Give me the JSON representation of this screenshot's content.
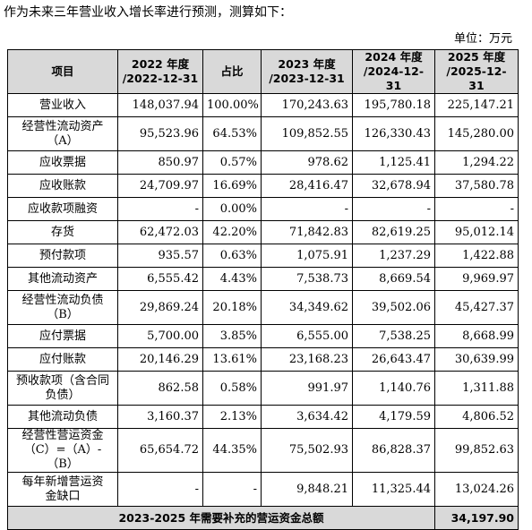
{
  "intro_text": "作为未来三年营业收入增长率进行预测，测算如下：",
  "unit_text": "单位：万元",
  "headers": {
    "item": "项目",
    "y2022_l1": "2022 年度",
    "y2022_l2": "/2022-12-31",
    "ratio": "占比",
    "y2023_l1": "2023 年度",
    "y2023_l2": "/2023-12-31",
    "y2024_l1": "2024 年度",
    "y2024_l2": "/2024-12-31",
    "y2025_l1": "2025 年度",
    "y2025_l2": "/2025-12-31"
  },
  "rows": [
    {
      "label1": "营业收入",
      "label2": "",
      "v2022": "148,037.94",
      "ratio": "100.00%",
      "v2023": "170,243.63",
      "v2024": "195,780.18",
      "v2025": "225,147.21"
    },
    {
      "label1": "经营性流动资产",
      "label2": "（A）",
      "v2022": "95,523.96",
      "ratio": "64.53%",
      "v2023": "109,852.55",
      "v2024": "126,330.43",
      "v2025": "145,280.00"
    },
    {
      "label1": "应收票据",
      "label2": "",
      "v2022": "850.97",
      "ratio": "0.57%",
      "v2023": "978.62",
      "v2024": "1,125.41",
      "v2025": "1,294.22"
    },
    {
      "label1": "应收账款",
      "label2": "",
      "v2022": "24,709.97",
      "ratio": "16.69%",
      "v2023": "28,416.47",
      "v2024": "32,678.94",
      "v2025": "37,580.78"
    },
    {
      "label1": "应收款项融资",
      "label2": "",
      "v2022": "-",
      "ratio": "0.00%",
      "v2023": "-",
      "v2024": "-",
      "v2025": "-"
    },
    {
      "label1": "存货",
      "label2": "",
      "v2022": "62,472.03",
      "ratio": "42.20%",
      "v2023": "71,842.83",
      "v2024": "82,619.25",
      "v2025": "95,012.14"
    },
    {
      "label1": "预付款项",
      "label2": "",
      "v2022": "935.57",
      "ratio": "0.63%",
      "v2023": "1,075.91",
      "v2024": "1,237.29",
      "v2025": "1,422.88"
    },
    {
      "label1": "其他流动资产",
      "label2": "",
      "v2022": "6,555.42",
      "ratio": "4.43%",
      "v2023": "7,538.73",
      "v2024": "8,669.54",
      "v2025": "9,969.97"
    },
    {
      "label1": "经营性流动负债",
      "label2": "（B）",
      "v2022": "29,869.24",
      "ratio": "20.18%",
      "v2023": "34,349.62",
      "v2024": "39,502.06",
      "v2025": "45,427.37"
    },
    {
      "label1": "应付票据",
      "label2": "",
      "v2022": "5,700.00",
      "ratio": "3.85%",
      "v2023": "6,555.00",
      "v2024": "7,538.25",
      "v2025": "8,668.99"
    },
    {
      "label1": "应付账款",
      "label2": "",
      "v2022": "20,146.29",
      "ratio": "13.61%",
      "v2023": "23,168.23",
      "v2024": "26,643.47",
      "v2025": "30,639.99"
    },
    {
      "label1": "预收款项（含合同",
      "label2": "负债）",
      "v2022": "862.58",
      "ratio": "0.58%",
      "v2023": "991.97",
      "v2024": "1,140.76",
      "v2025": "1,311.88"
    },
    {
      "label1": "其他流动负债",
      "label2": "",
      "v2022": "3,160.37",
      "ratio": "2.13%",
      "v2023": "3,634.42",
      "v2024": "4,179.59",
      "v2025": "4,806.52"
    },
    {
      "label1": "经营性营运资金",
      "label2": "（C）=（A）-（B）",
      "v2022": "65,654.72",
      "ratio": "44.35%",
      "v2023": "75,502.93",
      "v2024": "86,828.37",
      "v2025": "99,852.63"
    },
    {
      "label1": "每年新增营运资",
      "label2": "金缺口",
      "v2022": "-",
      "ratio": "-",
      "v2023": "9,848.21",
      "v2024": "11,325.44",
      "v2025": "13,024.26"
    }
  ],
  "total": {
    "label": "2023-2025 年需要补充的营运资金总额",
    "value": "34,197.90"
  }
}
